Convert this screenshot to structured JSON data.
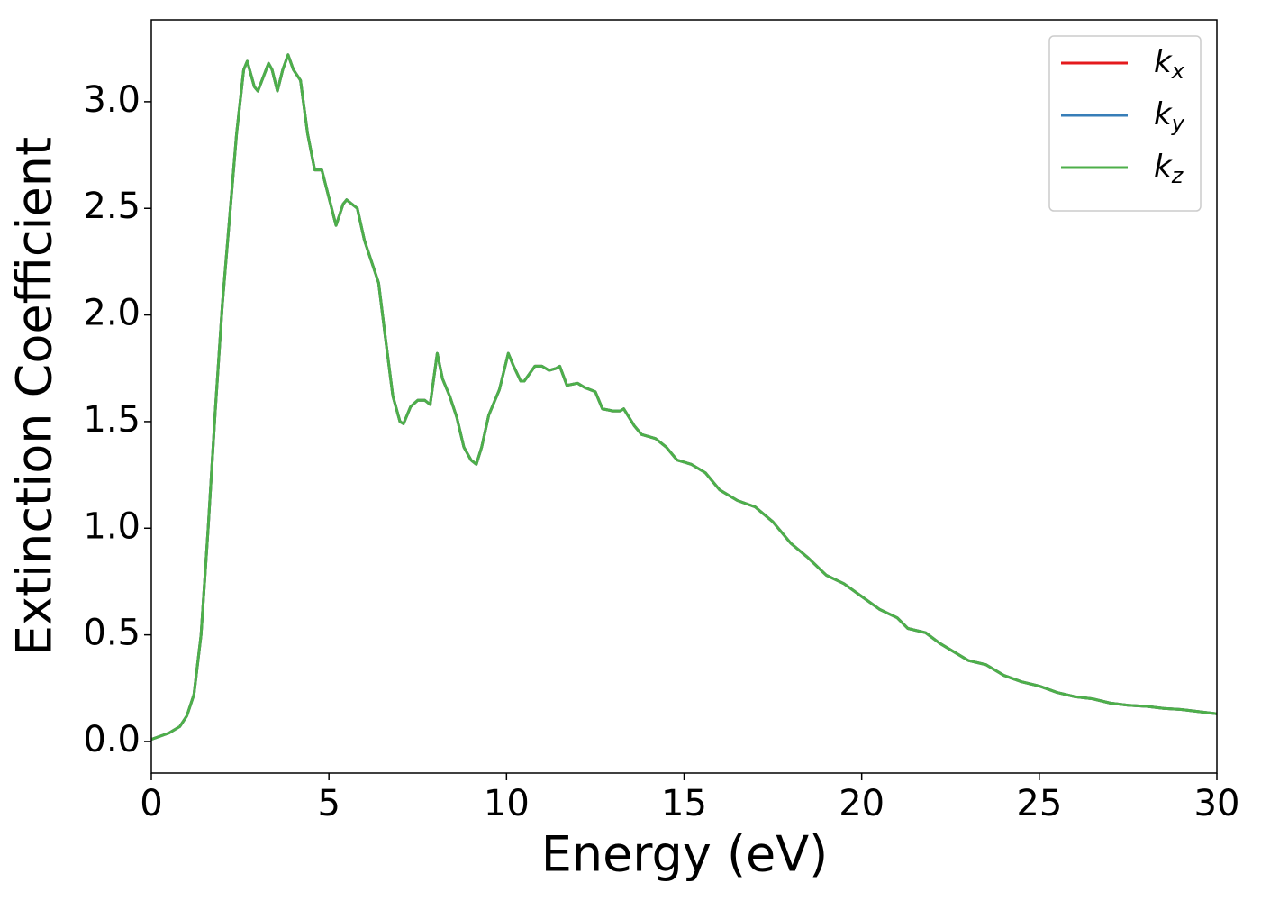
{
  "chart_data": {
    "type": "line",
    "xlabel": "Energy (eV)",
    "ylabel": "Extinction Coefficient",
    "x": [
      0,
      0.5,
      0.8,
      1.0,
      1.2,
      1.4,
      1.6,
      1.8,
      2.0,
      2.2,
      2.4,
      2.6,
      2.7,
      2.9,
      3.0,
      3.3,
      3.4,
      3.55,
      3.7,
      3.85,
      4.0,
      4.2,
      4.4,
      4.6,
      4.8,
      5.0,
      5.2,
      5.4,
      5.5,
      5.8,
      6.0,
      6.2,
      6.4,
      6.6,
      6.8,
      7.0,
      7.1,
      7.3,
      7.5,
      7.7,
      7.85,
      8.05,
      8.2,
      8.4,
      8.6,
      8.8,
      9.0,
      9.15,
      9.3,
      9.5,
      9.8,
      10.05,
      10.2,
      10.4,
      10.5,
      10.8,
      11.0,
      11.2,
      11.4,
      11.5,
      11.7,
      12.0,
      12.2,
      12.5,
      12.7,
      13.0,
      13.2,
      13.3,
      13.6,
      13.8,
      14.2,
      14.5,
      14.8,
      15.2,
      15.6,
      16.0,
      16.5,
      17.0,
      17.5,
      18.0,
      18.5,
      19.0,
      19.5,
      20.0,
      20.5,
      21.0,
      21.3,
      21.8,
      22.2,
      22.7,
      23.0,
      23.5,
      24.0,
      24.5,
      25.0,
      25.5,
      26.0,
      26.5,
      27.0,
      27.5,
      28.0,
      28.5,
      29.0,
      29.5,
      30.0
    ],
    "series": [
      {
        "name": "kx",
        "color": "#e41a1c",
        "values": [
          0.01,
          0.04,
          0.07,
          0.12,
          0.22,
          0.5,
          1.0,
          1.55,
          2.05,
          2.45,
          2.85,
          3.15,
          3.19,
          3.07,
          3.05,
          3.18,
          3.15,
          3.05,
          3.15,
          3.22,
          3.15,
          3.1,
          2.85,
          2.68,
          2.68,
          2.55,
          2.42,
          2.52,
          2.54,
          2.5,
          2.35,
          2.25,
          2.15,
          1.88,
          1.62,
          1.5,
          1.49,
          1.57,
          1.6,
          1.6,
          1.58,
          1.82,
          1.7,
          1.62,
          1.52,
          1.38,
          1.32,
          1.3,
          1.38,
          1.53,
          1.65,
          1.82,
          1.76,
          1.69,
          1.69,
          1.76,
          1.76,
          1.74,
          1.75,
          1.76,
          1.67,
          1.68,
          1.66,
          1.64,
          1.56,
          1.55,
          1.55,
          1.56,
          1.48,
          1.44,
          1.42,
          1.38,
          1.32,
          1.3,
          1.26,
          1.18,
          1.13,
          1.1,
          1.03,
          0.93,
          0.86,
          0.78,
          0.74,
          0.68,
          0.62,
          0.58,
          0.53,
          0.51,
          0.46,
          0.41,
          0.38,
          0.36,
          0.31,
          0.28,
          0.26,
          0.23,
          0.21,
          0.2,
          0.18,
          0.17,
          0.165,
          0.155,
          0.15,
          0.14,
          0.13
        ]
      },
      {
        "name": "ky",
        "color": "#377eb8",
        "values": [
          0.01,
          0.04,
          0.07,
          0.12,
          0.22,
          0.5,
          1.0,
          1.55,
          2.05,
          2.45,
          2.85,
          3.15,
          3.19,
          3.07,
          3.05,
          3.18,
          3.15,
          3.05,
          3.15,
          3.22,
          3.15,
          3.1,
          2.85,
          2.68,
          2.68,
          2.55,
          2.42,
          2.52,
          2.54,
          2.5,
          2.35,
          2.25,
          2.15,
          1.88,
          1.62,
          1.5,
          1.49,
          1.57,
          1.6,
          1.6,
          1.58,
          1.82,
          1.7,
          1.62,
          1.52,
          1.38,
          1.32,
          1.3,
          1.38,
          1.53,
          1.65,
          1.82,
          1.76,
          1.69,
          1.69,
          1.76,
          1.76,
          1.74,
          1.75,
          1.76,
          1.67,
          1.68,
          1.66,
          1.64,
          1.56,
          1.55,
          1.55,
          1.56,
          1.48,
          1.44,
          1.42,
          1.38,
          1.32,
          1.3,
          1.26,
          1.18,
          1.13,
          1.1,
          1.03,
          0.93,
          0.86,
          0.78,
          0.74,
          0.68,
          0.62,
          0.58,
          0.53,
          0.51,
          0.46,
          0.41,
          0.38,
          0.36,
          0.31,
          0.28,
          0.26,
          0.23,
          0.21,
          0.2,
          0.18,
          0.17,
          0.165,
          0.155,
          0.15,
          0.14,
          0.13
        ]
      },
      {
        "name": "kz",
        "color": "#4daf4a",
        "values": [
          0.01,
          0.04,
          0.07,
          0.12,
          0.22,
          0.5,
          1.0,
          1.55,
          2.05,
          2.45,
          2.85,
          3.15,
          3.19,
          3.07,
          3.05,
          3.18,
          3.15,
          3.05,
          3.15,
          3.22,
          3.15,
          3.1,
          2.85,
          2.68,
          2.68,
          2.55,
          2.42,
          2.52,
          2.54,
          2.5,
          2.35,
          2.25,
          2.15,
          1.88,
          1.62,
          1.5,
          1.49,
          1.57,
          1.6,
          1.6,
          1.58,
          1.82,
          1.7,
          1.62,
          1.52,
          1.38,
          1.32,
          1.3,
          1.38,
          1.53,
          1.65,
          1.82,
          1.76,
          1.69,
          1.69,
          1.76,
          1.76,
          1.74,
          1.75,
          1.76,
          1.67,
          1.68,
          1.66,
          1.64,
          1.56,
          1.55,
          1.55,
          1.56,
          1.48,
          1.44,
          1.42,
          1.38,
          1.32,
          1.3,
          1.26,
          1.18,
          1.13,
          1.1,
          1.03,
          0.93,
          0.86,
          0.78,
          0.74,
          0.68,
          0.62,
          0.58,
          0.53,
          0.51,
          0.46,
          0.41,
          0.38,
          0.36,
          0.31,
          0.28,
          0.26,
          0.23,
          0.21,
          0.2,
          0.18,
          0.17,
          0.165,
          0.155,
          0.15,
          0.14,
          0.13
        ]
      }
    ],
    "xlim": [
      0,
      30
    ],
    "ylim": [
      -0.148,
      3.384
    ],
    "xticks": [
      0,
      5,
      10,
      15,
      20,
      25,
      30
    ],
    "yticks": [
      {
        "value": 0,
        "label": "0.0"
      },
      0.5,
      {
        "value": 1,
        "label": "1.0"
      },
      1.5,
      {
        "value": 2,
        "label": "2.0"
      },
      2.5,
      {
        "value": 3,
        "label": "3.0"
      }
    ],
    "grid": false,
    "legend": "upper right"
  }
}
